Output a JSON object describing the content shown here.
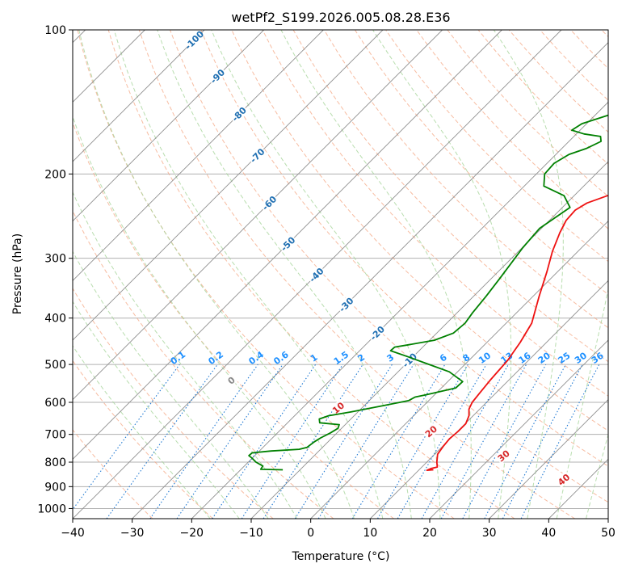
{
  "chart_data": {
    "type": "line",
    "title": "wetPf2_S199.2026.005.08.28.E36",
    "xlabel": "Temperature (°C)",
    "ylabel": "Pressure (hPa)",
    "xlim": [
      -40,
      50
    ],
    "ylim": [
      1050,
      100
    ],
    "grid": true,
    "x_ticks": [
      -40,
      -30,
      -20,
      -10,
      0,
      10,
      20,
      30,
      40,
      50
    ],
    "y_ticks": [
      100,
      200,
      300,
      400,
      500,
      600,
      700,
      800,
      900,
      1000
    ],
    "series": [
      {
        "name": "temperature",
        "color": "#ee1111",
        "points": [
          [
            12.4,
            830
          ],
          [
            11.4,
            832
          ],
          [
            11.8,
            825
          ],
          [
            12.6,
            819
          ],
          [
            11.7,
            800
          ],
          [
            10.5,
            770
          ],
          [
            10.1,
            740
          ],
          [
            9.9,
            715
          ],
          [
            10.1,
            690
          ],
          [
            10.1,
            665
          ],
          [
            9.3,
            640
          ],
          [
            8.2,
            620
          ],
          [
            7.6,
            600
          ],
          [
            7.3,
            575
          ],
          [
            6.9,
            540
          ],
          [
            6.5,
            490
          ],
          [
            5.6,
            450
          ],
          [
            4.3,
            410
          ],
          [
            1.0,
            360
          ],
          [
            -1.8,
            320
          ],
          [
            -4.3,
            290
          ],
          [
            -6.2,
            265
          ],
          [
            -7.2,
            250
          ],
          [
            -7.4,
            238
          ],
          [
            -6.6,
            230
          ],
          [
            -4.4,
            222
          ],
          [
            -0.5,
            212
          ],
          [
            3.6,
            200
          ],
          [
            8.3,
            185
          ],
          [
            12.5,
            170
          ],
          [
            15.7,
            155
          ],
          [
            16.3,
            140
          ],
          [
            16.0,
            128
          ],
          [
            16.9,
            118
          ],
          [
            17.9,
            110
          ],
          [
            18.7,
            100
          ]
        ]
      },
      {
        "name": "dewpoint",
        "color": "#008000",
        "points": [
          [
            -12.9,
            830
          ],
          [
            -16.7,
            828
          ],
          [
            -16.9,
            815
          ],
          [
            -18.7,
            800
          ],
          [
            -20.0,
            785
          ],
          [
            -21.0,
            775
          ],
          [
            -20.9,
            765
          ],
          [
            -18.0,
            758
          ],
          [
            -13.6,
            752
          ],
          [
            -12.6,
            745
          ],
          [
            -12.3,
            725
          ],
          [
            -11.9,
            712
          ],
          [
            -11.1,
            695
          ],
          [
            -10.6,
            680
          ],
          [
            -11.0,
            668
          ],
          [
            -14.6,
            662
          ],
          [
            -15.3,
            650
          ],
          [
            -14.3,
            640
          ],
          [
            -11.1,
            628
          ],
          [
            -6.9,
            610
          ],
          [
            -3.4,
            595
          ],
          [
            -2.9,
            585
          ],
          [
            -1.3,
            578
          ],
          [
            2.4,
            560
          ],
          [
            2.5,
            543
          ],
          [
            -1.4,
            518
          ],
          [
            -5.5,
            502
          ],
          [
            -10.8,
            482
          ],
          [
            -14.8,
            468
          ],
          [
            -14.7,
            460
          ],
          [
            -12.8,
            455
          ],
          [
            -9.2,
            445
          ],
          [
            -7.2,
            430
          ],
          [
            -6.9,
            410
          ],
          [
            -7.4,
            390
          ],
          [
            -7.9,
            360
          ],
          [
            -8.6,
            330
          ],
          [
            -9.9,
            285
          ],
          [
            -10.3,
            260
          ],
          [
            -8.7,
            235
          ],
          [
            -11.7,
            222
          ],
          [
            -16.7,
            212
          ],
          [
            -18.6,
            200
          ],
          [
            -18.8,
            190
          ],
          [
            -17.8,
            182
          ],
          [
            -15.9,
            177
          ],
          [
            -14.6,
            171
          ],
          [
            -15.5,
            167
          ],
          [
            -18.7,
            165
          ],
          [
            -21.4,
            162
          ],
          [
            -20.8,
            157
          ],
          [
            -17.9,
            151
          ],
          [
            -15.6,
            145
          ],
          [
            -13.5,
            140
          ],
          [
            -12.0,
            134
          ],
          [
            -11.2,
            130
          ],
          [
            -10.1,
            127
          ],
          [
            -9.1,
            122
          ],
          [
            -7.3,
            118
          ],
          [
            -5.0,
            114
          ],
          [
            -2.5,
            110
          ],
          [
            0.5,
            106
          ],
          [
            2.9,
            103
          ],
          [
            3.7,
            100
          ]
        ]
      }
    ],
    "isotherm_labels": [
      "-100",
      "-90",
      "-80",
      "-70",
      "-60",
      "-50",
      "-40",
      "-30",
      "-20",
      "-10"
    ],
    "mixing_ratio_labels": [
      "0.1",
      "0.2",
      "0.4",
      "0.6",
      "1",
      "1.5",
      "2",
      "3",
      "4",
      "6",
      "8",
      "10",
      "13",
      "16",
      "20",
      "25",
      "30",
      "36"
    ],
    "moist_adiabat_labels": [
      "0",
      "10",
      "20",
      "30",
      "40"
    ],
    "annotation_colors": {
      "isotherm": "#1f6fb2",
      "mixing_ratio": "#1e90ff",
      "moist_adiabat_zero": "#888888",
      "moist_adiabat": "#d62728"
    }
  }
}
